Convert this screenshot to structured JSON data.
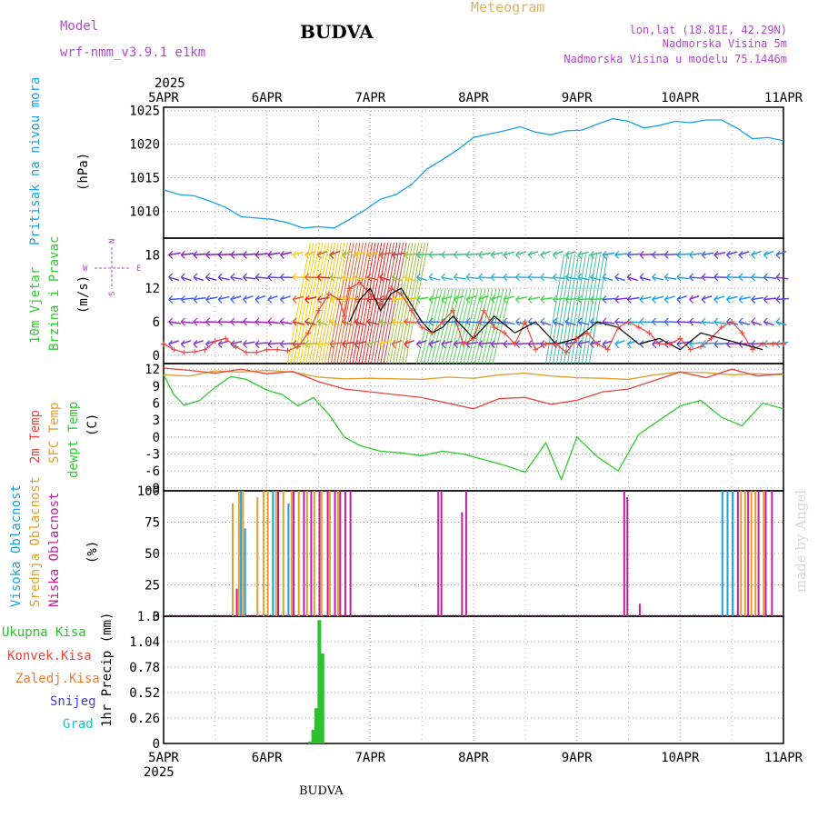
{
  "header": {
    "model_label": "Model",
    "model_name": "wrf-nmm_v3.9.1 e1km",
    "station": "BUDVA",
    "product": "Meteogram",
    "coords": "lon,lat (18.81E, 42.29N)",
    "elevation": "Nadmorska Visina 5m",
    "model_elevation": "Nadmorska Visina u modelu 75.1446m",
    "year": "2025"
  },
  "footer": {
    "station": "BUDVA",
    "year": "2025"
  },
  "watermark": "made by Angel",
  "colors": {
    "pressure": "#1aa0e6",
    "temp2m": "#e8463c",
    "sfc_temp": "#e0a030",
    "dewpt": "#2ecc2e",
    "high_cloud": "#1aa0e6",
    "mid_cloud": "#e0a030",
    "low_cloud": "#c0209a",
    "precip": "#2ec02e",
    "wind_label": "#a040c0"
  },
  "chart_data": [
    {
      "type": "line",
      "panel": "pressure",
      "ylabel": [
        "Pritisak na nivou mora",
        "(hPa)"
      ],
      "yticks": [
        1010,
        1015,
        1020,
        1025
      ],
      "ylim": [
        1006,
        1025.5
      ],
      "x_unit": "days from 5APR 00UTC",
      "xlim": [
        0,
        6
      ],
      "xticks": [
        "5APR",
        "6APR",
        "7APR",
        "8APR",
        "9APR",
        "10APR",
        "11APR"
      ],
      "series": [
        {
          "x": [
            0,
            0.15,
            0.3,
            0.45,
            0.6,
            0.75,
            0.9,
            1.05,
            1.2,
            1.35,
            1.5,
            1.65,
            1.8,
            1.95,
            2.1,
            2.25,
            2.4,
            2.55,
            2.7,
            2.85,
            3.0,
            3.15,
            3.3,
            3.45,
            3.6,
            3.75,
            3.9,
            4.05,
            4.2,
            4.35,
            4.5,
            4.65,
            4.8,
            4.95,
            5.1,
            5.25,
            5.4,
            5.55,
            5.7,
            5.85,
            6.0
          ],
          "values": [
            1013.2,
            1012.5,
            1012.3,
            1011.5,
            1010.6,
            1009.2,
            1009.0,
            1008.8,
            1008.3,
            1007.5,
            1007.7,
            1007.5,
            1008.8,
            1010.2,
            1011.8,
            1012.5,
            1014.0,
            1016.3,
            1017.7,
            1019.2,
            1021.0,
            1021.5,
            1022.0,
            1022.6,
            1021.8,
            1021.4,
            1022.0,
            1022.1,
            1023.0,
            1023.8,
            1023.4,
            1022.4,
            1022.8,
            1023.4,
            1023.2,
            1023.6,
            1023.6,
            1022.4,
            1020.8,
            1021.0,
            1020.5
          ]
        }
      ]
    },
    {
      "type": "line",
      "panel": "wind",
      "ylabel": [
        "10m Vjetar",
        "Brzina i Pravac",
        "(m/s)"
      ],
      "compass": {
        "north": "N",
        "south": "S",
        "west": "W",
        "east": "E"
      },
      "yticks": [
        0,
        6,
        12,
        18
      ],
      "ylim": [
        -1.5,
        21
      ],
      "x_unit": "days from 5APR 00UTC",
      "series": [
        {
          "name": "speed",
          "x": [
            0,
            0.1,
            0.2,
            0.3,
            0.4,
            0.5,
            0.6,
            0.7,
            0.8,
            0.9,
            1.0,
            1.1,
            1.2,
            1.3,
            1.4,
            1.5,
            1.6,
            1.7,
            1.75,
            1.8,
            1.9,
            2.0,
            2.1,
            2.2,
            2.3,
            2.4,
            2.5,
            2.6,
            2.7,
            2.8,
            2.9,
            3.0,
            3.1,
            3.2,
            3.3,
            3.4,
            3.5,
            3.6,
            3.7,
            3.8,
            3.9,
            4.0,
            4.1,
            4.2,
            4.3,
            4.4,
            4.5,
            4.6,
            4.7,
            4.8,
            4.9,
            5.0,
            5.1,
            5.2,
            5.3,
            5.4,
            5.5,
            5.6,
            5.7,
            5.8,
            5.9,
            6.0
          ],
          "values": [
            2,
            1,
            0.5,
            0.6,
            1.0,
            2.5,
            3.0,
            1.5,
            0.5,
            0.5,
            1.0,
            1.0,
            0.8,
            1.5,
            4,
            8,
            11,
            10,
            7,
            12,
            13,
            11,
            9,
            12,
            11,
            8,
            5,
            4,
            6,
            8,
            2,
            3,
            8,
            5,
            4,
            2,
            6,
            1,
            2,
            2,
            0.5,
            3,
            4,
            2,
            1,
            5,
            6,
            5,
            4,
            2,
            2,
            3,
            1,
            1.5,
            3,
            5,
            6,
            4,
            1,
            2,
            2,
            2
          ]
        },
        {
          "name": "gust",
          "x": [
            1.8,
            1.9,
            2.0,
            2.1,
            2.2,
            2.3,
            2.4,
            2.5,
            2.6,
            2.7,
            2.8,
            3.0,
            3.2,
            3.4,
            3.6,
            3.8,
            4.0,
            4.2,
            4.4,
            4.6,
            4.8,
            5.0,
            5.2,
            5.4,
            5.6,
            5.8
          ],
          "values": [
            6,
            10,
            12,
            8,
            11,
            12,
            9,
            6,
            4,
            5,
            7,
            3,
            7,
            4,
            6,
            2,
            3,
            6,
            5,
            2,
            3,
            1,
            4,
            3,
            2,
            1
          ]
        }
      ]
    },
    {
      "type": "line",
      "panel": "temperature",
      "ylabel": [
        "2m Temp",
        "SFC Temp",
        "dewpt Temp",
        "(C)"
      ],
      "yticks": [
        -9,
        -6,
        -3,
        0,
        3,
        6,
        9,
        12
      ],
      "ylim": [
        -9.5,
        13
      ],
      "x_unit": "days from 5APR 00UTC",
      "series": [
        {
          "name": "2m Temp",
          "x": [
            0,
            0.25,
            0.5,
            0.75,
            1.0,
            1.25,
            1.5,
            1.75,
            2.0,
            2.25,
            2.5,
            2.75,
            3.0,
            3.25,
            3.5,
            3.75,
            4.0,
            4.25,
            4.5,
            4.75,
            5.0,
            5.25,
            5.5,
            5.75,
            6.0
          ],
          "values": [
            12.2,
            11.8,
            11.3,
            12.0,
            11.2,
            11.6,
            9.8,
            8.5,
            8.0,
            7.5,
            7.0,
            6.0,
            5.0,
            6.8,
            7.0,
            5.8,
            6.5,
            8.0,
            8.5,
            10.0,
            11.5,
            10.5,
            12.0,
            10.8,
            11.2
          ]
        },
        {
          "name": "SFC Temp",
          "x": [
            0,
            0.25,
            0.5,
            0.75,
            1.0,
            1.25,
            1.5,
            1.75,
            2.0,
            2.25,
            2.5,
            2.75,
            3.0,
            3.25,
            3.5,
            3.75,
            4.0,
            4.25,
            4.5,
            4.75,
            5.0,
            5.25,
            5.5,
            5.75,
            6.0
          ],
          "values": [
            11.0,
            10.8,
            11.7,
            11.5,
            11.8,
            11.5,
            10.6,
            10.3,
            10.4,
            10.3,
            10.2,
            10.6,
            10.4,
            11.0,
            11.3,
            10.8,
            10.5,
            10.4,
            10.2,
            11.0,
            11.5,
            11.4,
            11.0,
            11.2,
            11.0
          ]
        },
        {
          "name": "dewpt Temp",
          "x": [
            0,
            0.1,
            0.2,
            0.35,
            0.5,
            0.65,
            0.8,
            1.0,
            1.15,
            1.3,
            1.45,
            1.6,
            1.75,
            1.9,
            2.1,
            2.3,
            2.5,
            2.7,
            2.9,
            3.1,
            3.3,
            3.5,
            3.7,
            3.85,
            4.0,
            4.2,
            4.4,
            4.6,
            4.8,
            5.0,
            5.2,
            5.4,
            5.6,
            5.8,
            6.0
          ],
          "values": [
            11.0,
            7.5,
            5.6,
            6.5,
            8.8,
            10.7,
            10.2,
            8.3,
            7.5,
            5.5,
            7.0,
            4.0,
            0.0,
            -1.5,
            -2.5,
            -2.8,
            -3.3,
            -2.5,
            -3.0,
            -4.0,
            -5.0,
            -6.2,
            -1.0,
            -7.5,
            0.0,
            -3.5,
            -6.0,
            0.5,
            3.0,
            5.5,
            6.5,
            3.5,
            2.0,
            6.0,
            5.0
          ]
        }
      ]
    },
    {
      "type": "bar",
      "panel": "cloud",
      "ylabel": [
        "Visoka Oblacnost",
        "Srednja Oblacnost",
        "Niska Oblacnost",
        "(%)"
      ],
      "yticks": [
        0,
        25,
        50,
        75,
        100
      ],
      "ylim": [
        0,
        100
      ],
      "x_unit": "days from 5APR 00UTC",
      "series": [
        {
          "name": "Visoka Oblacnost",
          "x": [
            0.74,
            0.78,
            1.05,
            1.2,
            5.4,
            5.45,
            5.5
          ],
          "values": [
            100,
            70,
            100,
            90,
            100,
            100,
            100
          ]
        },
        {
          "name": "Srednja Oblacnost",
          "x": [
            0.66,
            0.72,
            0.76,
            0.9,
            0.96,
            1.0,
            1.08,
            1.15,
            1.23,
            1.3,
            1.38,
            1.45,
            1.52,
            1.6,
            1.68,
            5.58,
            5.62,
            5.68,
            5.72,
            5.8
          ],
          "values": [
            90,
            100,
            100,
            95,
            100,
            100,
            100,
            100,
            100,
            100,
            100,
            100,
            100,
            100,
            100,
            100,
            100,
            100,
            100,
            100
          ]
        },
        {
          "name": "Niska Oblacnost",
          "x": [
            0.7,
            1.1,
            1.25,
            1.35,
            1.42,
            1.5,
            1.58,
            1.65,
            1.7,
            1.75,
            1.8,
            2.65,
            2.68,
            2.88,
            2.92,
            4.45,
            4.48,
            4.6,
            5.55,
            5.65,
            5.75,
            5.82,
            5.88
          ],
          "values": [
            22,
            100,
            100,
            100,
            100,
            100,
            100,
            100,
            100,
            100,
            100,
            100,
            100,
            83,
            100,
            100,
            95,
            10,
            100,
            100,
            100,
            100,
            100
          ]
        }
      ]
    },
    {
      "type": "bar",
      "panel": "precip",
      "ylabel": [
        "1hr Precip (mm)"
      ],
      "legend": [
        "Ukupna Kisa",
        "Konvek.Kisa",
        "Zaledj.Kisa",
        "Snijeg",
        "Grad"
      ],
      "yticks": [
        0,
        0.26,
        0.52,
        0.78,
        1.04,
        1.3
      ],
      "ylim": [
        0,
        1.3
      ],
      "x_unit": "days from 5APR 00UTC",
      "series": [
        {
          "name": "Ukupna Kisa",
          "x": [
            1.4,
            1.43,
            1.46,
            1.49,
            1.52,
            1.55
          ],
          "values": [
            0.02,
            0.14,
            0.36,
            1.26,
            0.92,
            0.0
          ]
        }
      ]
    }
  ]
}
